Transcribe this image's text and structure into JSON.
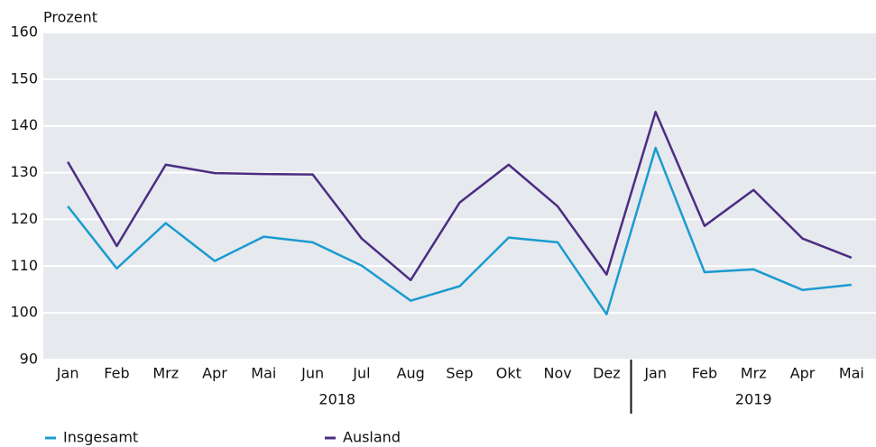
{
  "chart_data": {
    "type": "line",
    "y_label": "Prozent",
    "groups": [
      {
        "label": "2018",
        "categories": [
          "Jan",
          "Feb",
          "Mrz",
          "Apr",
          "Mai",
          "Jun",
          "Jul",
          "Aug",
          "Sep",
          "Okt",
          "Nov",
          "Dez"
        ]
      },
      {
        "label": "2019",
        "categories": [
          "Jan",
          "Feb",
          "Mrz",
          "Apr",
          "Mai"
        ]
      }
    ],
    "series": [
      {
        "name": "Insgesamt",
        "color": "#1a9bd0",
        "values": [
          122.8,
          109.5,
          119.2,
          111.1,
          116.3,
          115.1,
          110.1,
          102.6,
          105.7,
          116.1,
          115.1,
          99.7,
          135.3,
          108.7,
          109.3,
          104.9,
          106.0
        ]
      },
      {
        "name": "Ausland",
        "color": "#4b2d82",
        "values": [
          132.3,
          114.3,
          131.7,
          129.9,
          129.7,
          129.6,
          115.9,
          107.0,
          123.6,
          131.7,
          122.8,
          108.2,
          143.0,
          118.6,
          126.3,
          115.9,
          111.8
        ]
      }
    ],
    "ylim": [
      90,
      160
    ],
    "yticks": [
      90,
      100,
      110,
      120,
      130,
      140,
      150,
      160
    ],
    "grid": true
  }
}
